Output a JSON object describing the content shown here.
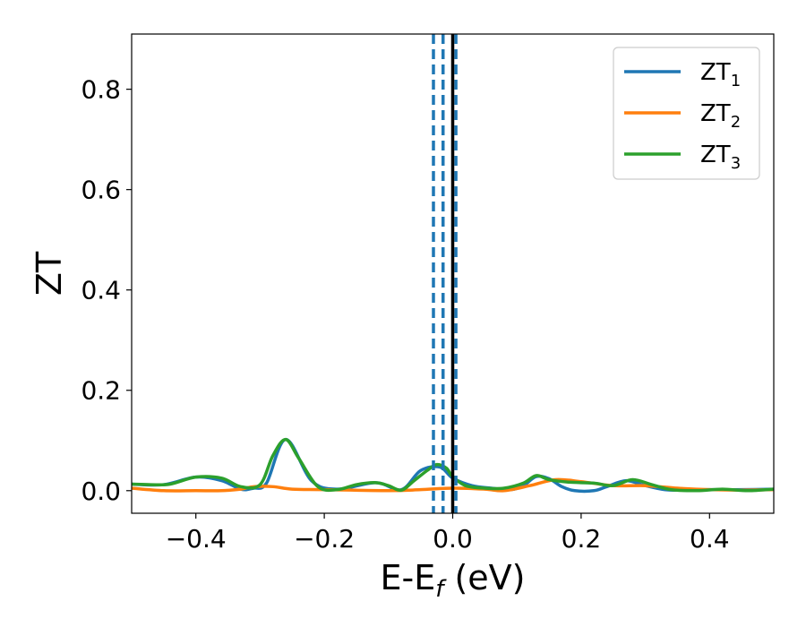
{
  "chart_data": {
    "type": "line",
    "title": "",
    "xlabel": "E-E",
    "xlabel_sub": "f",
    "xlabel_unit": " (eV)",
    "ylabel": "ZT",
    "xlim": [
      -0.5,
      0.5
    ],
    "ylim": [
      -0.045,
      0.91
    ],
    "xticks": [
      -0.4,
      -0.2,
      0.0,
      0.2,
      0.4
    ],
    "xtick_labels": [
      "−0.4",
      "−0.2",
      "0.0",
      "0.2",
      "0.4"
    ],
    "yticks": [
      0.0,
      0.2,
      0.4,
      0.6,
      0.8
    ],
    "ytick_labels": [
      "0.0",
      "0.2",
      "0.4",
      "0.6",
      "0.8"
    ],
    "grid": false,
    "legend_position": "top-right",
    "vertical_lines": [
      {
        "x": -0.03,
        "style": "dashed",
        "color": "#1f77b4"
      },
      {
        "x": -0.015,
        "style": "dashed",
        "color": "#1f77b4"
      },
      {
        "x": 0.005,
        "style": "dashed",
        "color": "#1f77b4"
      },
      {
        "x": 0.0,
        "style": "solid",
        "color": "#000000"
      }
    ],
    "series": [
      {
        "name": "ZT",
        "name_sub": "1",
        "color": "#1f77b4",
        "x": [
          -0.5,
          -0.45,
          -0.4,
          -0.36,
          -0.33,
          -0.31,
          -0.29,
          -0.26,
          -0.22,
          -0.18,
          -0.12,
          -0.08,
          -0.05,
          -0.02,
          0.0,
          0.03,
          0.06,
          0.09,
          0.11,
          0.13,
          0.15,
          0.17,
          0.19,
          0.22,
          0.24,
          0.27,
          0.3,
          0.33,
          0.36,
          0.4,
          0.45,
          0.5
        ],
        "y": [
          0.013,
          0.012,
          0.027,
          0.02,
          0.003,
          0.005,
          0.015,
          0.102,
          0.02,
          0.003,
          0.016,
          0.002,
          0.04,
          0.047,
          0.025,
          0.01,
          0.005,
          0.002,
          0.01,
          0.028,
          0.024,
          0.008,
          0.0,
          0.0,
          0.008,
          0.02,
          0.01,
          0.002,
          0.001,
          0.002,
          0.002,
          0.003
        ]
      },
      {
        "name": "ZT",
        "name_sub": "2",
        "color": "#ff7f0e",
        "x": [
          -0.5,
          -0.45,
          -0.4,
          -0.36,
          -0.33,
          -0.31,
          -0.28,
          -0.25,
          -0.2,
          -0.1,
          -0.05,
          0.0,
          0.05,
          0.08,
          0.12,
          0.16,
          0.2,
          0.25,
          0.3,
          0.35,
          0.4,
          0.45,
          0.5
        ],
        "y": [
          0.005,
          0.0,
          0.0,
          0.0,
          0.003,
          0.008,
          0.008,
          0.003,
          0.002,
          0.0,
          0.002,
          0.005,
          0.003,
          0.0,
          0.01,
          0.022,
          0.018,
          0.01,
          0.01,
          0.005,
          0.002,
          0.001,
          0.002
        ]
      },
      {
        "name": "ZT",
        "name_sub": "3",
        "color": "#2ca02c",
        "x": [
          -0.5,
          -0.47,
          -0.44,
          -0.4,
          -0.36,
          -0.33,
          -0.3,
          -0.28,
          -0.26,
          -0.24,
          -0.21,
          -0.18,
          -0.15,
          -0.12,
          -0.1,
          -0.08,
          -0.06,
          -0.04,
          -0.025,
          -0.01,
          0.0,
          0.02,
          0.05,
          0.08,
          0.11,
          0.13,
          0.15,
          0.18,
          0.22,
          0.25,
          0.28,
          0.31,
          0.34,
          0.38,
          0.42,
          0.46,
          0.5
        ],
        "y": [
          0.013,
          0.012,
          0.013,
          0.027,
          0.025,
          0.008,
          0.012,
          0.07,
          0.102,
          0.065,
          0.008,
          0.002,
          0.012,
          0.016,
          0.01,
          0.001,
          0.02,
          0.04,
          0.052,
          0.045,
          0.028,
          0.01,
          0.005,
          0.005,
          0.015,
          0.03,
          0.022,
          0.017,
          0.015,
          0.01,
          0.022,
          0.012,
          0.002,
          0.0,
          0.003,
          0.0,
          0.003
        ]
      }
    ]
  }
}
